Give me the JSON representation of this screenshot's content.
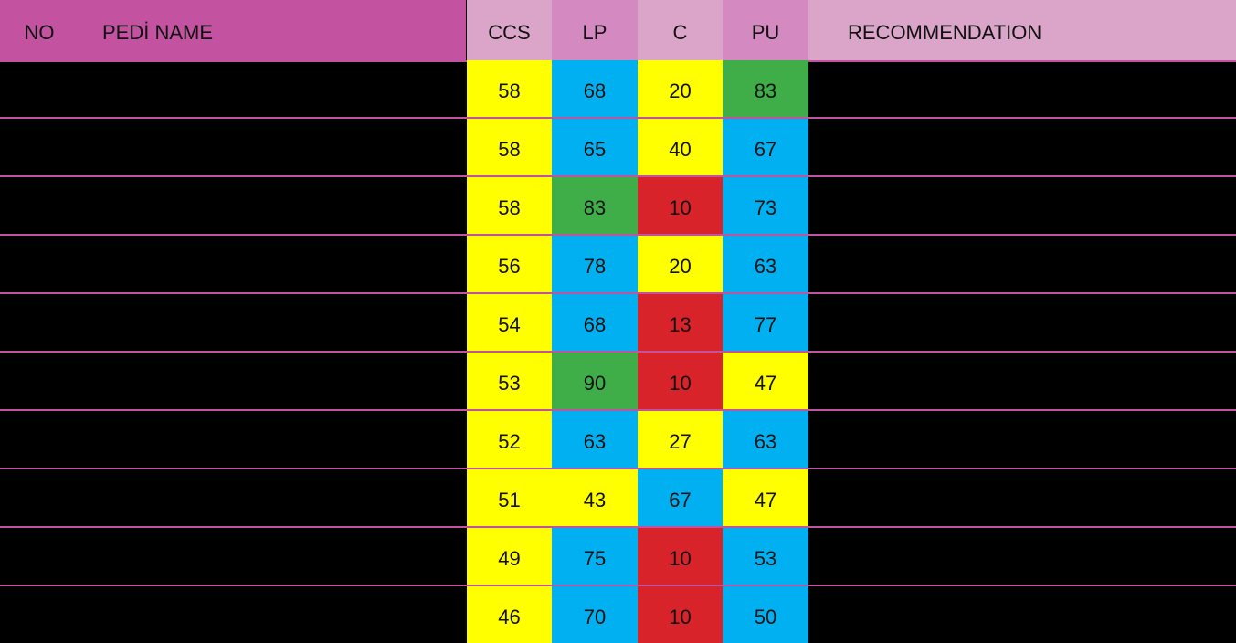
{
  "header": {
    "no": "NO",
    "name": "PEDİ NAME",
    "ccs": "CCS",
    "lp": "LP",
    "c": "C",
    "pu": "PU",
    "recommendation": "RECOMMENDATION"
  },
  "colors": {
    "header_left": "#c352a0",
    "header_light": "#dba4c9",
    "header_mid": "#d48ac0",
    "row_divider": "#c352a0",
    "background": "#000000",
    "yellow": "#ffff00",
    "blue": "#00b0f0",
    "green": "#3fae49",
    "red": "#d9232b"
  },
  "rows": [
    {
      "no": "",
      "name": "",
      "ccs": "58",
      "ccs_color": "yellow",
      "lp": "68",
      "lp_color": "blue",
      "c": "20",
      "c_color": "yellow",
      "pu": "83",
      "pu_color": "green",
      "recommendation": ""
    },
    {
      "no": "",
      "name": "",
      "ccs": "58",
      "ccs_color": "yellow",
      "lp": "65",
      "lp_color": "blue",
      "c": "40",
      "c_color": "yellow",
      "pu": "67",
      "pu_color": "blue",
      "recommendation": ""
    },
    {
      "no": "",
      "name": "",
      "ccs": "58",
      "ccs_color": "yellow",
      "lp": "83",
      "lp_color": "green",
      "c": "10",
      "c_color": "red",
      "pu": "73",
      "pu_color": "blue",
      "recommendation": ""
    },
    {
      "no": "",
      "name": "",
      "ccs": "56",
      "ccs_color": "yellow",
      "lp": "78",
      "lp_color": "blue",
      "c": "20",
      "c_color": "yellow",
      "pu": "63",
      "pu_color": "blue",
      "recommendation": ""
    },
    {
      "no": "",
      "name": "",
      "ccs": "54",
      "ccs_color": "yellow",
      "lp": "68",
      "lp_color": "blue",
      "c": "13",
      "c_color": "red",
      "pu": "77",
      "pu_color": "blue",
      "recommendation": ""
    },
    {
      "no": "",
      "name": "",
      "ccs": "53",
      "ccs_color": "yellow",
      "lp": "90",
      "lp_color": "green",
      "c": "10",
      "c_color": "red",
      "pu": "47",
      "pu_color": "yellow",
      "recommendation": ""
    },
    {
      "no": "",
      "name": "",
      "ccs": "52",
      "ccs_color": "yellow",
      "lp": "63",
      "lp_color": "blue",
      "c": "27",
      "c_color": "yellow",
      "pu": "63",
      "pu_color": "blue",
      "recommendation": ""
    },
    {
      "no": "",
      "name": "",
      "ccs": "51",
      "ccs_color": "yellow",
      "lp": "43",
      "lp_color": "yellow",
      "c": "67",
      "c_color": "blue",
      "pu": "47",
      "pu_color": "yellow",
      "recommendation": ""
    },
    {
      "no": "",
      "name": "",
      "ccs": "49",
      "ccs_color": "yellow",
      "lp": "75",
      "lp_color": "blue",
      "c": "10",
      "c_color": "red",
      "pu": "53",
      "pu_color": "blue",
      "recommendation": ""
    },
    {
      "no": "",
      "name": "",
      "ccs": "46",
      "ccs_color": "yellow",
      "lp": "70",
      "lp_color": "blue",
      "c": "10",
      "c_color": "red",
      "pu": "50",
      "pu_color": "blue",
      "recommendation": ""
    }
  ]
}
